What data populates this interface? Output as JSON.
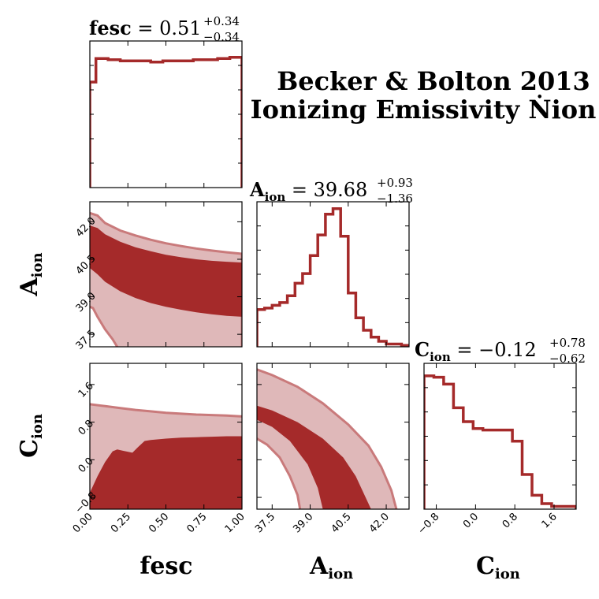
{
  "figure": {
    "title_line1": "Becker & Bolton 2013",
    "title_line2": "Ionizing Emissivity Ṅion"
  },
  "colors": {
    "line": "#a52a2a",
    "inner_region": "#a52a2a",
    "outer_region": "#dfb8b9",
    "outer_edge": "#c97a7b"
  },
  "parameters": [
    {
      "key": "fesc",
      "label": "fesc",
      "sub": "",
      "median": "0.51",
      "plus": "+0.34",
      "minus": "−0.34"
    },
    {
      "key": "Aion",
      "label": "A",
      "sub": "ion",
      "median": "39.68",
      "plus": "+0.93",
      "minus": "−1.36"
    },
    {
      "key": "Cion",
      "label": "C",
      "sub": "ion",
      "median": "−0.12",
      "plus": "+0.78",
      "minus": "−0.62"
    }
  ],
  "chart_data": [
    {
      "type": "histogram",
      "panel": "fesc-1d",
      "param": "fesc",
      "xlim": [
        0.0,
        1.0
      ],
      "ylim": [
        0,
        1.25
      ],
      "bin_edges": [
        0.0,
        0.04,
        0.08,
        0.12,
        0.16,
        0.2,
        0.24,
        0.28,
        0.32,
        0.36,
        0.4,
        0.44,
        0.48,
        0.52,
        0.56,
        0.6,
        0.64,
        0.68,
        0.72,
        0.76,
        0.8,
        0.84,
        0.88,
        0.92,
        0.96,
        1.0
      ],
      "values": [
        0.9,
        1.1,
        1.1,
        1.09,
        1.09,
        1.08,
        1.08,
        1.08,
        1.08,
        1.08,
        1.07,
        1.07,
        1.08,
        1.08,
        1.08,
        1.08,
        1.08,
        1.09,
        1.09,
        1.09,
        1.09,
        1.1,
        1.1,
        1.11,
        1.11
      ]
    },
    {
      "type": "contour",
      "panel": "fesc-Aion",
      "x_param": "fesc",
      "y_param": "Aion",
      "xlim": [
        0.0,
        1.0
      ],
      "ylim": [
        37.0,
        42.8
      ],
      "levels": [
        "inner",
        "outer"
      ],
      "outer_upper": {
        "x": [
          0.0,
          0.05,
          0.1,
          0.2,
          0.3,
          0.4,
          0.5,
          0.6,
          0.7,
          0.8,
          0.9,
          1.0
        ],
        "y": [
          42.35,
          42.25,
          41.95,
          41.65,
          41.45,
          41.28,
          41.14,
          41.03,
          40.93,
          40.85,
          40.78,
          40.72
        ]
      },
      "outer_lower": {
        "x": [
          0.0,
          0.02,
          0.05,
          0.1,
          0.15,
          0.18
        ],
        "y": [
          38.6,
          38.55,
          38.2,
          37.7,
          37.3,
          37.0
        ]
      },
      "inner_upper": {
        "x": [
          0.0,
          0.05,
          0.1,
          0.2,
          0.3,
          0.4,
          0.5,
          0.6,
          0.7,
          0.8,
          0.9,
          1.0
        ],
        "y": [
          41.85,
          41.75,
          41.5,
          41.2,
          40.98,
          40.82,
          40.68,
          40.58,
          40.5,
          40.44,
          40.4,
          40.37
        ]
      },
      "inner_lower": {
        "x": [
          0.0,
          0.05,
          0.1,
          0.2,
          0.3,
          0.4,
          0.5,
          0.6,
          0.7,
          0.8,
          0.9,
          1.0
        ],
        "y": [
          40.15,
          39.9,
          39.6,
          39.22,
          38.95,
          38.75,
          38.6,
          38.48,
          38.38,
          38.3,
          38.24,
          38.2
        ]
      }
    },
    {
      "type": "histogram",
      "panel": "Aion-1d",
      "param": "Aion",
      "xlim": [
        36.9,
        42.9
      ],
      "ylim": [
        0,
        1.05
      ],
      "bin_edges": [
        36.9,
        37.2,
        37.5,
        37.8,
        38.1,
        38.4,
        38.7,
        39.0,
        39.3,
        39.6,
        39.9,
        40.2,
        40.5,
        40.8,
        41.1,
        41.4,
        41.7,
        42.0,
        42.3,
        42.6,
        42.9
      ],
      "values": [
        0.27,
        0.28,
        0.3,
        0.32,
        0.37,
        0.46,
        0.53,
        0.66,
        0.81,
        0.96,
        1.0,
        0.8,
        0.39,
        0.21,
        0.12,
        0.07,
        0.04,
        0.02,
        0.02,
        0.01
      ]
    },
    {
      "type": "contour",
      "panel": "fesc-Cion",
      "x_param": "fesc",
      "y_param": "Cion",
      "xlim": [
        0.0,
        1.0
      ],
      "ylim": [
        -1.05,
        2.05
      ],
      "levels": [
        "inner",
        "outer"
      ],
      "outer_upper": {
        "x": [
          0.0,
          0.1,
          0.2,
          0.3,
          0.4,
          0.5,
          0.6,
          0.7,
          0.8,
          0.9,
          1.0
        ],
        "y": [
          1.18,
          1.14,
          1.1,
          1.06,
          1.03,
          1.0,
          0.98,
          0.96,
          0.95,
          0.94,
          0.92
        ]
      },
      "inner_upper": {
        "x": [
          0.0,
          0.05,
          0.1,
          0.15,
          0.18,
          0.22,
          0.28,
          0.32,
          0.36,
          0.4,
          0.5,
          0.6,
          0.7,
          0.8,
          0.9,
          1.0
        ],
        "y": [
          -0.7,
          -0.35,
          -0.05,
          0.18,
          0.22,
          0.19,
          0.15,
          0.28,
          0.4,
          0.42,
          0.45,
          0.47,
          0.48,
          0.49,
          0.5,
          0.5
        ]
      }
    },
    {
      "type": "contour",
      "panel": "Aion-Cion",
      "x_param": "Aion",
      "y_param": "Cion",
      "xlim": [
        36.9,
        42.9
      ],
      "ylim": [
        -1.05,
        2.05
      ],
      "levels": [
        "inner",
        "outer"
      ],
      "outer_outer_edge": {
        "x": [
          36.9,
          37.5,
          38.5,
          39.5,
          40.5,
          41.3,
          41.8,
          42.2,
          42.4
        ],
        "y": [
          1.92,
          1.8,
          1.55,
          1.2,
          0.75,
          0.3,
          -0.15,
          -0.65,
          -1.05
        ]
      },
      "inner_outer_edge": {
        "x": [
          36.9,
          37.5,
          38.5,
          39.5,
          40.3,
          40.8,
          41.1,
          41.4
        ],
        "y": [
          1.15,
          1.05,
          0.8,
          0.45,
          0.05,
          -0.35,
          -0.7,
          -1.05
        ]
      },
      "inner_inner_edge": {
        "x": [
          36.9,
          37.5,
          38.2,
          38.9,
          39.3,
          39.5
        ],
        "y": [
          0.85,
          0.7,
          0.4,
          -0.1,
          -0.6,
          -1.05
        ]
      },
      "outer_inner_edge": {
        "x": [
          36.9,
          37.3,
          37.8,
          38.2,
          38.5,
          38.6
        ],
        "y": [
          0.45,
          0.32,
          0.05,
          -0.35,
          -0.75,
          -1.05
        ]
      }
    },
    {
      "type": "histogram",
      "panel": "Cion-1d",
      "param": "Cion",
      "xlim": [
        -1.05,
        2.05
      ],
      "ylim": [
        0,
        1.05
      ],
      "bin_edges": [
        -1.05,
        -0.85,
        -0.65,
        -0.45,
        -0.25,
        -0.05,
        0.15,
        0.35,
        0.55,
        0.75,
        0.95,
        1.15,
        1.35,
        1.55,
        1.75,
        1.95,
        2.05
      ],
      "values": [
        0.96,
        0.95,
        0.9,
        0.73,
        0.63,
        0.58,
        0.57,
        0.57,
        0.57,
        0.49,
        0.25,
        0.1,
        0.04,
        0.02,
        0.02,
        0.02
      ]
    }
  ],
  "ticks": {
    "fesc": [
      "0.00",
      "0.25",
      "0.50",
      "0.75",
      "1.00"
    ],
    "Aion": [
      "37.5",
      "39.0",
      "40.5",
      "42.0"
    ],
    "Cion": [
      "−0.8",
      "0.0",
      "0.8",
      "1.6"
    ]
  }
}
